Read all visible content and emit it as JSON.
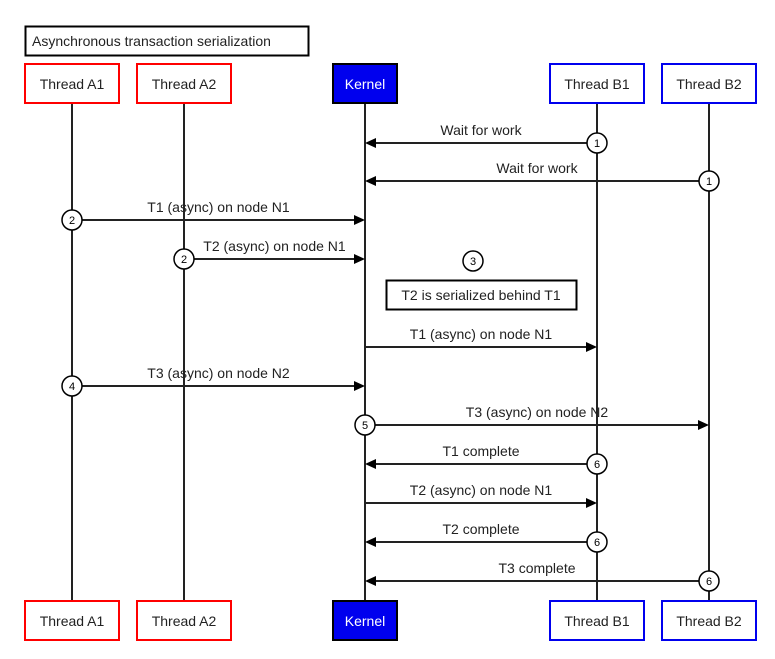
{
  "title": "Asynchronous transaction serialization",
  "colors": {
    "thread_a": "#ff0000",
    "kernel": "#0000ee",
    "thread_b": "#0000ee",
    "line": "#222222"
  },
  "participants": [
    {
      "id": "A1",
      "label": "Thread A1",
      "style": "thread_a"
    },
    {
      "id": "A2",
      "label": "Thread A2",
      "style": "thread_a"
    },
    {
      "id": "K",
      "label": "Kernel",
      "style": "kernel"
    },
    {
      "id": "B1",
      "label": "Thread B1",
      "style": "thread_b"
    },
    {
      "id": "B2",
      "label": "Thread B2",
      "style": "thread_b"
    }
  ],
  "messages": [
    {
      "from": "B1",
      "to": "K",
      "label": "Wait for work",
      "step": "1"
    },
    {
      "from": "B2",
      "to": "K",
      "label": "Wait for work",
      "step": "1"
    },
    {
      "from": "A1",
      "to": "K",
      "label": "T1 (async) on node N1",
      "step": "2"
    },
    {
      "from": "A2",
      "to": "K",
      "label": "T2 (async) on node N1",
      "step": "2"
    },
    {
      "note": "T2 is serialized behind T1",
      "step": "3"
    },
    {
      "from": "K",
      "to": "B1",
      "label": "T1 (async) on node N1",
      "step": ""
    },
    {
      "from": "A1",
      "to": "K",
      "label": "T3 (async) on node N2",
      "step": "4"
    },
    {
      "from": "K",
      "to": "B2",
      "label": "T3 (async) on node N2",
      "step": "5"
    },
    {
      "from": "B1",
      "to": "K",
      "label": "T1 complete",
      "step": "6"
    },
    {
      "from": "K",
      "to": "B1",
      "label": "T2 (async) on node N1",
      "step": ""
    },
    {
      "from": "B1",
      "to": "K",
      "label": "T2 complete",
      "step": "6"
    },
    {
      "from": "B2",
      "to": "K",
      "label": "T3 complete",
      "step": "6"
    }
  ]
}
